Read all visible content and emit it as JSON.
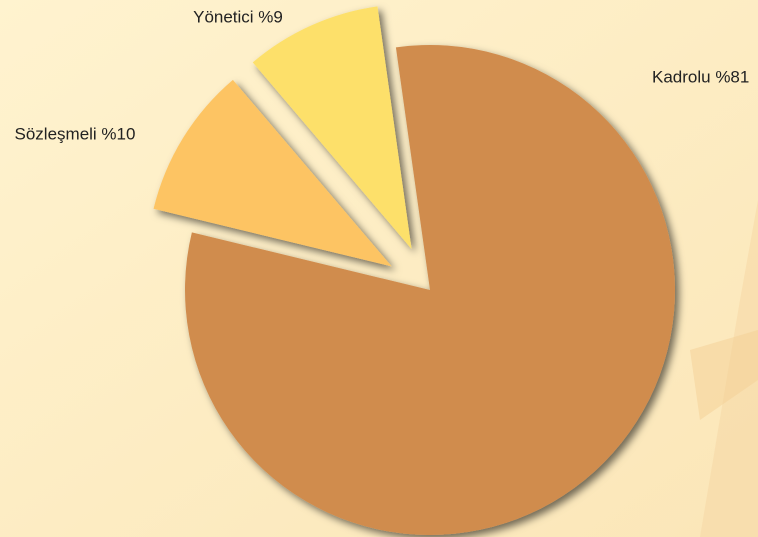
{
  "chart_data": {
    "type": "pie",
    "values": [
      81,
      10,
      9
    ],
    "value_labels": [
      "Kadrolu %81",
      "Sözleşmeli %10",
      "Yönetici %9"
    ],
    "colors": [
      "#d08c4e",
      "#fdc463",
      "#fde06a"
    ]
  }
}
